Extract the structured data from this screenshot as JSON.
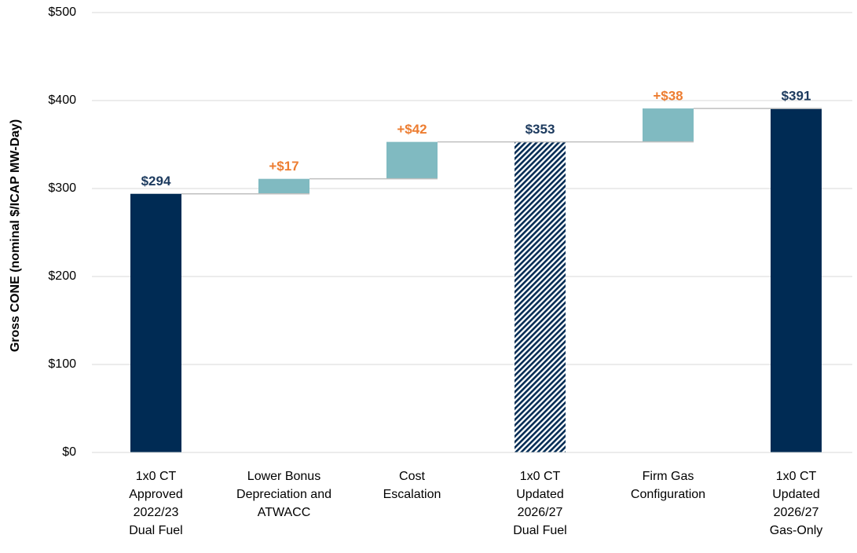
{
  "chart_data": {
    "type": "waterfall",
    "y_label": "Gross CONE (nominal $/ICAP MW-Day)",
    "categories": [
      [
        "1x0 CT",
        "Approved",
        "2022/23",
        "Dual Fuel"
      ],
      [
        "Lower Bonus",
        "Depreciation and",
        "ATWACC"
      ],
      [
        "Cost",
        "Escalation"
      ],
      [
        "1x0 CT",
        "Updated",
        "2026/27",
        "Dual Fuel"
      ],
      [
        "Firm Gas",
        "Configuration"
      ],
      [
        "1x0 CT",
        "Updated",
        "2026/27",
        "Gas-Only"
      ]
    ],
    "values": [
      294,
      17,
      42,
      353,
      38,
      391
    ],
    "value_labels": [
      "$294",
      "+$17",
      "+$42",
      "$353",
      "+$38",
      "$391"
    ],
    "kinds": [
      "total",
      "delta",
      "delta",
      "total",
      "delta",
      "total"
    ],
    "hatched": [
      false,
      false,
      false,
      true,
      false,
      false
    ],
    "colors": [
      "#002b54",
      "#80bac1",
      "#80bac1",
      "#002b54",
      "#80bac1",
      "#002b54"
    ],
    "label_colors": [
      "#1c3a5e",
      "#ed7d31",
      "#ed7d31",
      "#1c3a5e",
      "#ed7d31",
      "#1c3a5e"
    ],
    "ylim": [
      0,
      500
    ],
    "yticks": [
      {
        "value": 0,
        "label": "$0"
      },
      {
        "value": 100,
        "label": "$100"
      },
      {
        "value": 200,
        "label": "$200"
      },
      {
        "value": 300,
        "label": "$300"
      },
      {
        "value": 400,
        "label": "$400"
      },
      {
        "value": 500,
        "label": "$500"
      }
    ],
    "grid": true
  }
}
